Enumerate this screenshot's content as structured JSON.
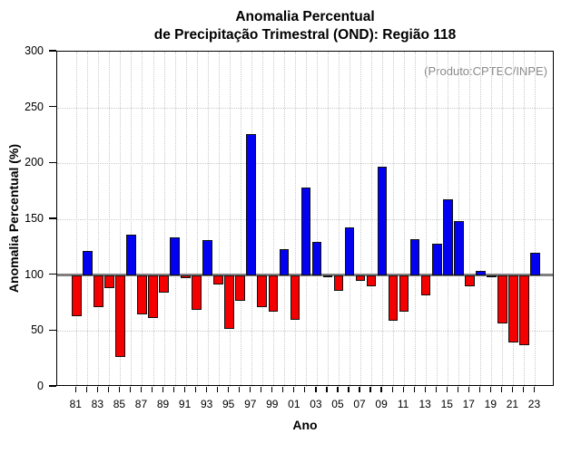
{
  "header": {
    "title_line1": "Anomalia Percentual",
    "title_line2": "de Precipitação Trimestral (OND): Região 118"
  },
  "annotation": {
    "text": "(Produto:CPTEC/INPE)",
    "color": "#8a8a8a"
  },
  "chart_data": {
    "type": "bar",
    "title": "Anomalia Percentual de Precipitação Trimestral (OND): Região 118",
    "xlabel": "Ano",
    "ylabel": "Anomalia Percentual (%)",
    "ylim": [
      0,
      300
    ],
    "yticks": [
      0,
      50,
      100,
      150,
      200,
      250,
      300
    ],
    "baseline": 100,
    "grid": "dotted-every-year-and-50",
    "legend": "none",
    "x_tick_label_every": 2,
    "categories": [
      "81",
      "82",
      "83",
      "84",
      "85",
      "86",
      "87",
      "88",
      "89",
      "90",
      "91",
      "92",
      "93",
      "94",
      "95",
      "96",
      "97",
      "98",
      "99",
      "00",
      "01",
      "02",
      "03",
      "04",
      "05",
      "06",
      "07",
      "08",
      "09",
      "10",
      "11",
      "12",
      "13",
      "14",
      "15",
      "16",
      "17",
      "18",
      "19",
      "20",
      "21",
      "22",
      "23"
    ],
    "values": [
      63,
      122,
      71,
      88,
      27,
      136,
      65,
      62,
      84,
      134,
      97,
      69,
      131,
      92,
      52,
      77,
      226,
      71,
      67,
      123,
      60,
      178,
      130,
      98,
      86,
      143,
      95,
      90,
      197,
      59,
      67,
      132,
      82,
      128,
      168,
      148,
      90,
      104,
      100,
      57,
      40,
      37,
      120
    ],
    "colors": {
      "above_baseline": "#0202f0",
      "below_baseline": "#f50000",
      "baseline_line": "#7f7f7f",
      "bar_border": "#101010"
    }
  }
}
